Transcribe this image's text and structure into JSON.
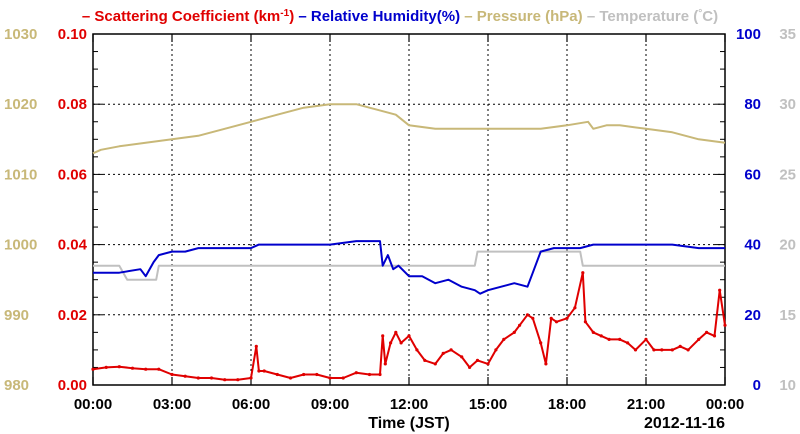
{
  "chart_data": {
    "type": "line",
    "legend_position": "top",
    "grid": true,
    "xlabel": "Time (JST)",
    "date_label": "2012-11-16",
    "x_unit": "hours since 00:00 JST",
    "x_ticks": [
      "00:00",
      "03:00",
      "06:00",
      "09:00",
      "12:00",
      "15:00",
      "18:00",
      "21:00",
      "00:00"
    ],
    "xlim": [
      0,
      24
    ],
    "axes": {
      "scattering": {
        "ylim": [
          0,
          0.1
        ],
        "ticks": [
          "0.00",
          "0.02",
          "0.04",
          "0.06",
          "0.08",
          "0.10"
        ],
        "color": "#e00000"
      },
      "pressure": {
        "ylim": [
          980,
          1030
        ],
        "ticks": [
          "980",
          "990",
          "1000",
          "1010",
          "1020",
          "1030"
        ],
        "color": "#c8b878"
      },
      "humidity": {
        "ylim": [
          0,
          100
        ],
        "ticks": [
          "0",
          "20",
          "40",
          "60",
          "80",
          "100"
        ],
        "color": "#0000cc"
      },
      "temperature": {
        "ylim": [
          10,
          35
        ],
        "ticks": [
          "10",
          "15",
          "20",
          "25",
          "30",
          "35"
        ],
        "color": "#c0c0c0"
      }
    },
    "series": [
      {
        "name": "Scattering Coefficient",
        "legend_text": "Scattering Coefficient (km",
        "legend_sup": "-1",
        "legend_tail": ")",
        "axis": "scattering",
        "color": "#e00000",
        "x": [
          0,
          0.5,
          1,
          1.5,
          2,
          2.5,
          3,
          3.5,
          4,
          4.5,
          5,
          5.5,
          6,
          6.2,
          6.3,
          6.5,
          7,
          7.5,
          8,
          8.5,
          9,
          9.5,
          10,
          10.5,
          10.9,
          11,
          11.1,
          11.3,
          11.5,
          11.7,
          12,
          12.3,
          12.6,
          13,
          13.3,
          13.6,
          14,
          14.3,
          14.6,
          15,
          15.3,
          15.6,
          16,
          16.2,
          16.5,
          16.7,
          17,
          17.2,
          17.4,
          17.6,
          18,
          18.3,
          18.6,
          18.7,
          19,
          19.3,
          19.6,
          20,
          20.3,
          20.6,
          21,
          21.3,
          21.6,
          22,
          22.3,
          22.6,
          23,
          23.3,
          23.6,
          23.8,
          24
        ],
        "y": [
          0.0045,
          0.005,
          0.0052,
          0.0048,
          0.0045,
          0.0045,
          0.003,
          0.0025,
          0.002,
          0.002,
          0.0015,
          0.0015,
          0.002,
          0.011,
          0.004,
          0.004,
          0.003,
          0.002,
          0.003,
          0.003,
          0.002,
          0.002,
          0.0035,
          0.003,
          0.003,
          0.014,
          0.006,
          0.012,
          0.015,
          0.012,
          0.014,
          0.01,
          0.007,
          0.006,
          0.009,
          0.01,
          0.008,
          0.005,
          0.007,
          0.006,
          0.01,
          0.013,
          0.015,
          0.017,
          0.02,
          0.019,
          0.012,
          0.006,
          0.019,
          0.018,
          0.019,
          0.022,
          0.032,
          0.018,
          0.015,
          0.014,
          0.013,
          0.013,
          0.012,
          0.01,
          0.013,
          0.01,
          0.01,
          0.01,
          0.011,
          0.01,
          0.013,
          0.015,
          0.014,
          0.027,
          0.017
        ]
      },
      {
        "name": "Relative Humidity",
        "legend_text": "Relative Humidity(%)",
        "axis": "humidity",
        "color": "#0000cc",
        "x": [
          0,
          1,
          1.8,
          2,
          2.3,
          2.5,
          3,
          3.5,
          4,
          5,
          6,
          6.3,
          7,
          8,
          9,
          10,
          10.9,
          11,
          11.2,
          11.4,
          11.6,
          12,
          12.5,
          13,
          13.5,
          14,
          14.5,
          14.7,
          15,
          15.5,
          16,
          16.5,
          16.7,
          17,
          17.5,
          18,
          18.5,
          19,
          20,
          21,
          22,
          23,
          24
        ],
        "y": [
          32,
          32,
          33,
          31,
          35,
          37,
          38,
          38,
          39,
          39,
          39,
          40,
          40,
          40,
          40,
          41,
          41,
          34,
          37,
          33,
          34,
          31,
          31,
          29,
          30,
          28,
          27,
          26,
          27,
          28,
          29,
          28,
          32,
          38,
          39,
          39,
          39,
          40,
          40,
          40,
          40,
          39,
          39
        ]
      },
      {
        "name": "Pressure",
        "legend_text": "Pressure (hPa)",
        "axis": "pressure",
        "color": "#c8b878",
        "x": [
          0,
          0.3,
          1,
          2,
          3,
          4,
          5,
          6,
          7,
          8,
          9,
          10,
          11,
          11.5,
          12,
          13,
          14,
          15,
          16,
          17,
          18,
          18.8,
          19,
          19.5,
          20,
          21,
          22,
          23,
          24
        ],
        "y": [
          1013,
          1013.5,
          1014,
          1014.5,
          1015,
          1015.5,
          1016.5,
          1017.5,
          1018.5,
          1019.5,
          1020,
          1020,
          1019,
          1018.5,
          1017,
          1016.5,
          1016.5,
          1016.5,
          1016.5,
          1016.5,
          1017,
          1017.5,
          1016.5,
          1017,
          1017,
          1016.5,
          1016,
          1015,
          1014.5
        ]
      },
      {
        "name": "Temperature",
        "legend_text": "Temperature (",
        "legend_sup": "°",
        "legend_tail": "C)",
        "axis": "temperature",
        "color": "#c0c0c0",
        "x": [
          0,
          1,
          1.3,
          2.4,
          2.5,
          14.5,
          14.6,
          18.5,
          18.6,
          24
        ],
        "y": [
          18.5,
          18.5,
          17.5,
          17.5,
          18.5,
          18.5,
          19.5,
          19.5,
          18.5,
          18.5
        ]
      }
    ]
  }
}
